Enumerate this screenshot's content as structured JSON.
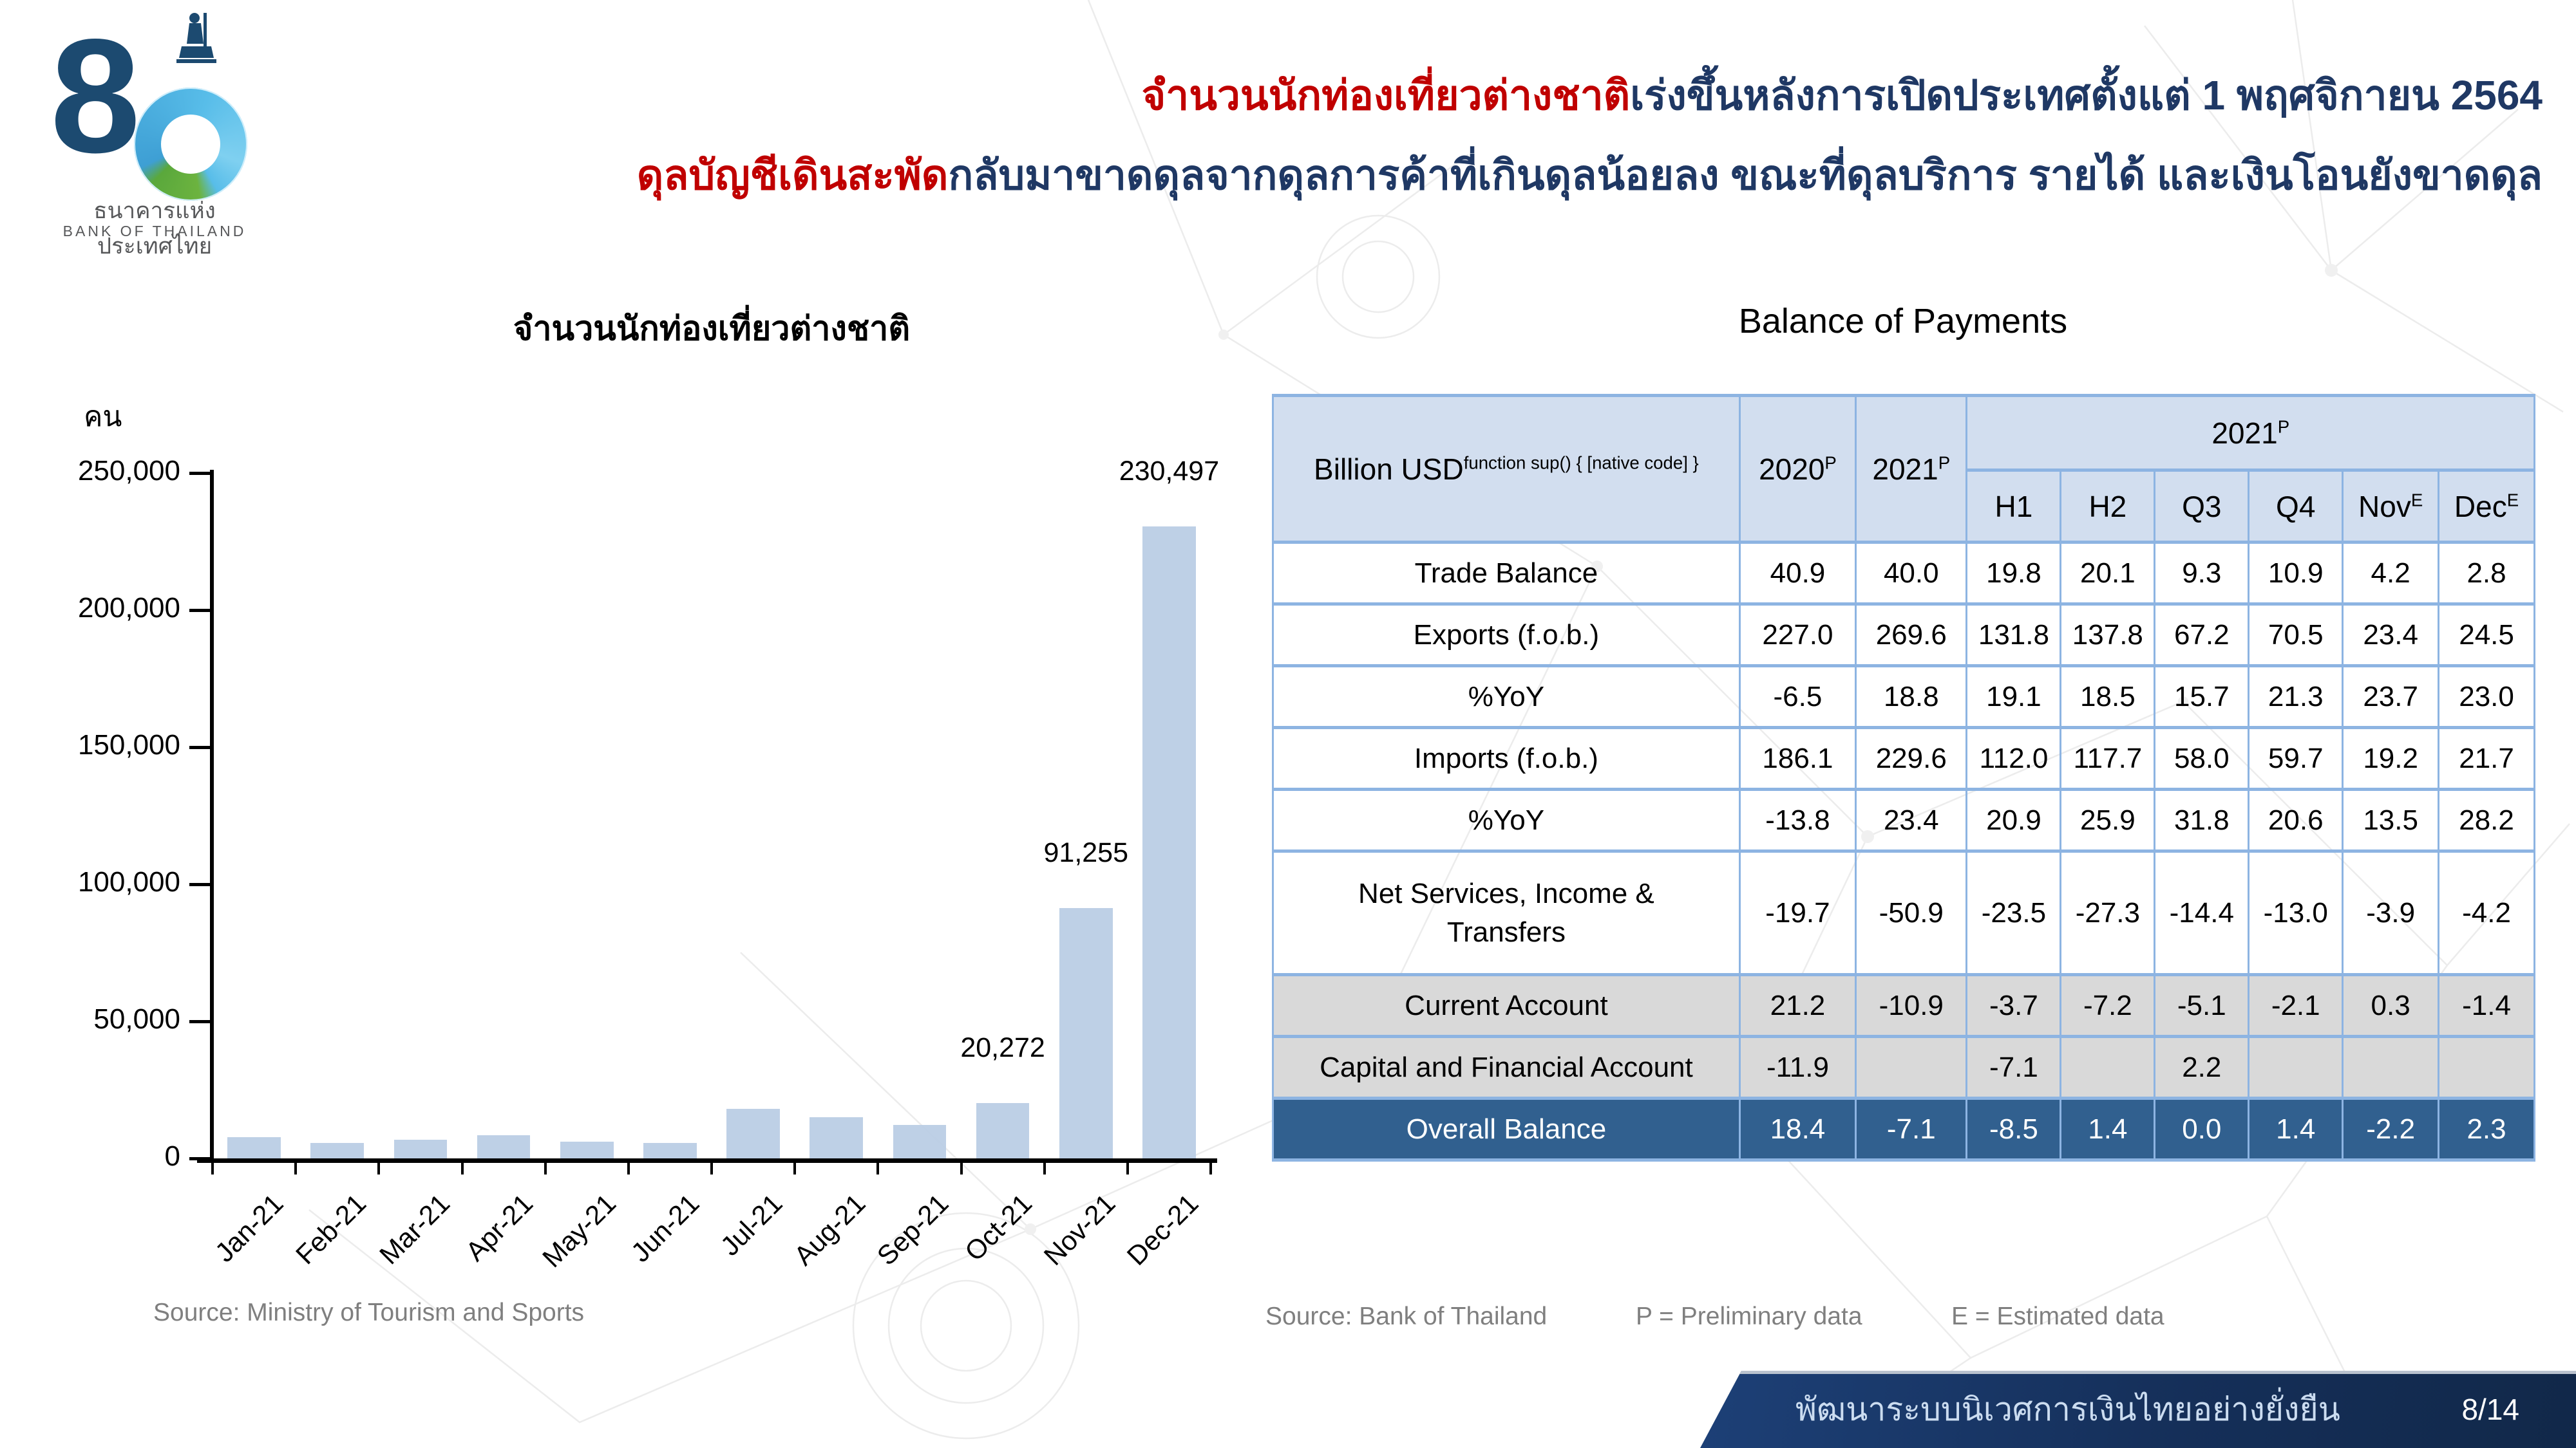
{
  "logo": {
    "digit_eight": "8",
    "thai_name": "ธนาคารแห่งประเทศไทย",
    "english_name": "BANK OF THAILAND"
  },
  "header": {
    "line1_highlight": "จำนวนนักท่องเที่ยวต่างชาติ",
    "line1_rest": "เร่งขึ้นหลังการเปิดประเทศตั้งแต่ 1 พฤศจิกายน 2564",
    "line2_highlight": "ดุลบัญชีเดินสะพัด",
    "line2_rest": "กลับมาขาดดุลจากดุลการค้าที่เกินดุลน้อยลง ขณะที่ดุลบริการ รายได้ และเงินโอนยังขาดดุล"
  },
  "chart_data": [
    {
      "type": "bar",
      "title": "จำนวนนักท่องเที่ยวต่างชาติ",
      "unit_label": "คน",
      "categories": [
        "Jan-21",
        "Feb-21",
        "Mar-21",
        "Apr-21",
        "May-21",
        "Jun-21",
        "Jul-21",
        "Aug-21",
        "Sep-21",
        "Oct-21",
        "Nov-21",
        "Dec-21"
      ],
      "values": [
        7700,
        5700,
        6700,
        8500,
        6050,
        5700,
        18000,
        15100,
        12200,
        20272,
        91255,
        230497
      ],
      "data_labels": {
        "9": "20,272",
        "10": "91,255",
        "11": "230,497"
      },
      "ylim": [
        0,
        250000
      ],
      "ytick_labels": [
        "0",
        "50,000",
        "100,000",
        "150,000",
        "200,000",
        "250,000"
      ],
      "grid": "off",
      "bar_color": "#B8CCE4",
      "source": "Source: Ministry of Tourism and Sports"
    },
    {
      "type": "table",
      "title": "Balance of Payments",
      "corner_header": "Billion USD",
      "col_2020": {
        "label": "2020",
        "sup": "P"
      },
      "col_2021": {
        "label": "2021",
        "sup": "P"
      },
      "group_2021": {
        "label": "2021",
        "sup": "P"
      },
      "sub_headers": [
        {
          "label": "H1",
          "sup": ""
        },
        {
          "label": "H2",
          "sup": ""
        },
        {
          "label": "Q3",
          "sup": ""
        },
        {
          "label": "Q4",
          "sup": ""
        },
        {
          "label": "Nov",
          "sup": "E"
        },
        {
          "label": "Dec",
          "sup": "E"
        }
      ],
      "rows": [
        {
          "label": "Trade Balance",
          "indent": false,
          "style": "white",
          "values": [
            "40.9",
            "40.0",
            "19.8",
            "20.1",
            "9.3",
            "10.9",
            "4.2",
            "2.8"
          ]
        },
        {
          "label": "Exports (f.o.b.)",
          "indent": false,
          "style": "white",
          "values": [
            "227.0",
            "269.6",
            "131.8",
            "137.8",
            "67.2",
            "70.5",
            "23.4",
            "24.5"
          ]
        },
        {
          "label": "%YoY",
          "indent": true,
          "style": "white",
          "values": [
            "-6.5",
            "18.8",
            "19.1",
            "18.5",
            "15.7",
            "21.3",
            "23.7",
            "23.0"
          ]
        },
        {
          "label": "Imports (f.o.b.)",
          "indent": false,
          "style": "white",
          "values": [
            "186.1",
            "229.6",
            "112.0",
            "117.7",
            "58.0",
            "59.7",
            "19.2",
            "21.7"
          ]
        },
        {
          "label": "%YoY",
          "indent": true,
          "style": "white",
          "values": [
            "-13.8",
            "23.4",
            "20.9",
            "25.9",
            "31.8",
            "20.6",
            "13.5",
            "28.2"
          ]
        },
        {
          "label": "Net Services, Income &\nTransfers",
          "indent": false,
          "style": "white",
          "values": [
            "-19.7",
            "-50.9",
            "-23.5",
            "-27.3",
            "-14.4",
            "-13.0",
            "-3.9",
            "-4.2"
          ]
        },
        {
          "label": "Current Account",
          "indent": false,
          "style": "gray",
          "values": [
            "21.2",
            "-10.9",
            "-3.7",
            "-7.2",
            "-5.1",
            "-2.1",
            "0.3",
            "-1.4"
          ]
        },
        {
          "label": "Capital and Financial Account",
          "indent": false,
          "style": "gray",
          "values": [
            "-11.9",
            "",
            "-7.1",
            "",
            "2.2",
            "",
            "",
            ""
          ]
        },
        {
          "label": "Overall Balance",
          "indent": false,
          "style": "navy",
          "values": [
            "18.4",
            "-7.1",
            "-8.5",
            "1.4",
            "0.0",
            "1.4",
            "-2.2",
            "2.3"
          ]
        }
      ],
      "source": "Source: Bank of Thailand",
      "legend_p": "P = Preliminary data",
      "legend_e": "E = Estimated data"
    }
  ],
  "footer": {
    "bar_text": "พัฒนาระบบนิเวศการเงินไทยอย่างยั่งยืน",
    "page": "8/14"
  },
  "colors": {
    "title_navy": "#1F3864",
    "highlight_red": "#C00000",
    "bar_fill": "#B8CCE4",
    "table_border": "#8DB4E2",
    "table_header_bg": "#D2DEEF",
    "row_gray": "#D9D9D9",
    "na_cell_gray": "#969696",
    "overall_row_navy": "#31608F",
    "footer_bar_navy": "#152F59",
    "source_text_gray": "#7F7F7F"
  }
}
